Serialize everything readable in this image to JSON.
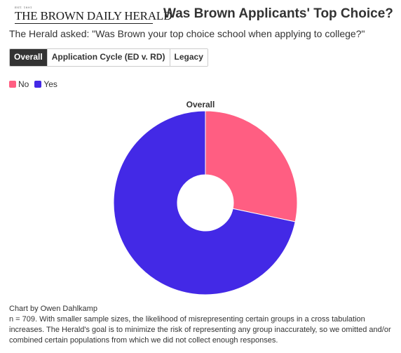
{
  "header": {
    "logo_text": "THE BROWN DAILY HERALD",
    "logo_tag": "EST. 1891",
    "title": "Was Brown Applicants' Top Choice?"
  },
  "subtitle": "The Herald asked: \"Was Brown your top choice school when applying to college?\"",
  "tabs": [
    {
      "label": "Overall",
      "active": true
    },
    {
      "label": "Application Cycle (ED v. RD)",
      "active": false
    },
    {
      "label": "Legacy",
      "active": false
    }
  ],
  "legend": [
    {
      "label": "No",
      "color": "#ff5e82"
    },
    {
      "label": "Yes",
      "color": "#4329e6"
    }
  ],
  "chart_data": {
    "type": "pie",
    "title": "Overall",
    "donut": true,
    "slices": [
      {
        "label": "No",
        "value": 28.3,
        "color": "#ff5e82"
      },
      {
        "label": "Yes",
        "value": 71.7,
        "color": "#4329e6"
      }
    ]
  },
  "footer": {
    "credit": "Chart by Owen Dahlkamp",
    "note": "n = 709. With smaller sample sizes, the likelihood of misrepresenting certain groups in a cross tabulation increases. The Herald's goal is to minimize the risk of representing any group inaccurately, so we omitted and/or combined certain populations from which we did not collect enough responses."
  }
}
